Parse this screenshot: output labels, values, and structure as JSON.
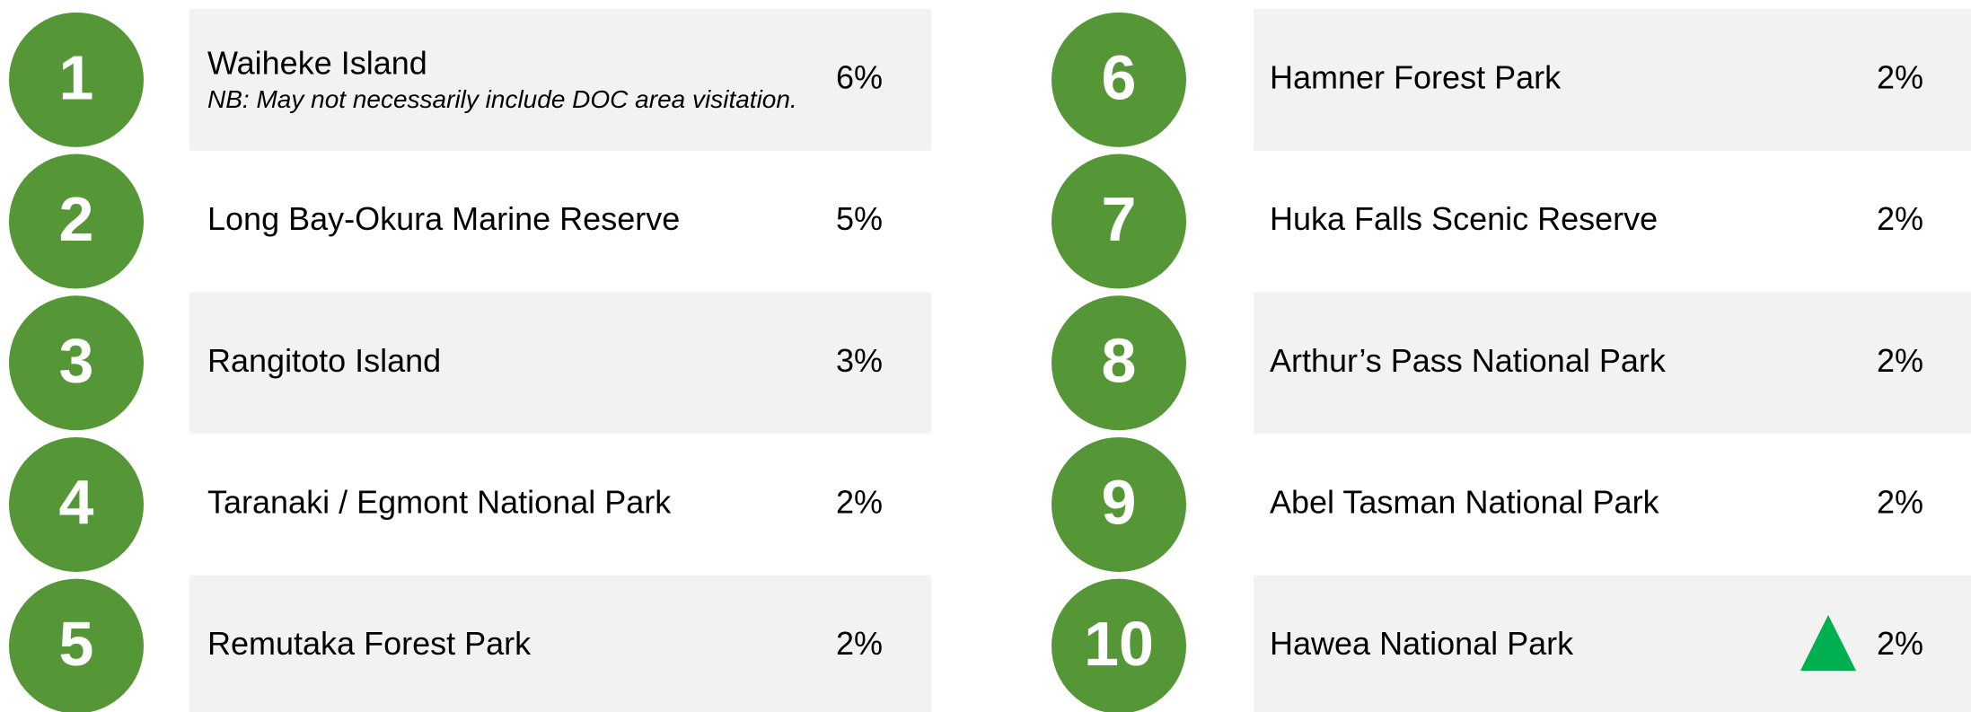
{
  "items": [
    {
      "rank": "1",
      "name": "Waiheke Island",
      "note": "NB: May not necessarily include DOC area visitation.",
      "share": "6%"
    },
    {
      "rank": "2",
      "name": "Long Bay-Okura Marine Reserve",
      "share": "5%"
    },
    {
      "rank": "3",
      "name": "Rangitoto Island",
      "share": "3%"
    },
    {
      "rank": "4",
      "name": "Taranaki / Egmont National Park",
      "share": "2%"
    },
    {
      "rank": "5",
      "name": "Remutaka Forest Park",
      "share": "2%"
    },
    {
      "rank": "6",
      "name": "Hamner Forest Park",
      "share": "2%"
    },
    {
      "rank": "7",
      "name": "Huka Falls Scenic Reserve",
      "share": "2%"
    },
    {
      "rank": "8",
      "name": "Arthur’s Pass National Park",
      "share": "2%"
    },
    {
      "rank": "9",
      "name": "Abel Tasman National Park",
      "share": "2%"
    },
    {
      "rank": "10",
      "name": "Hawea National Park",
      "share": "2%"
    }
  ]
}
